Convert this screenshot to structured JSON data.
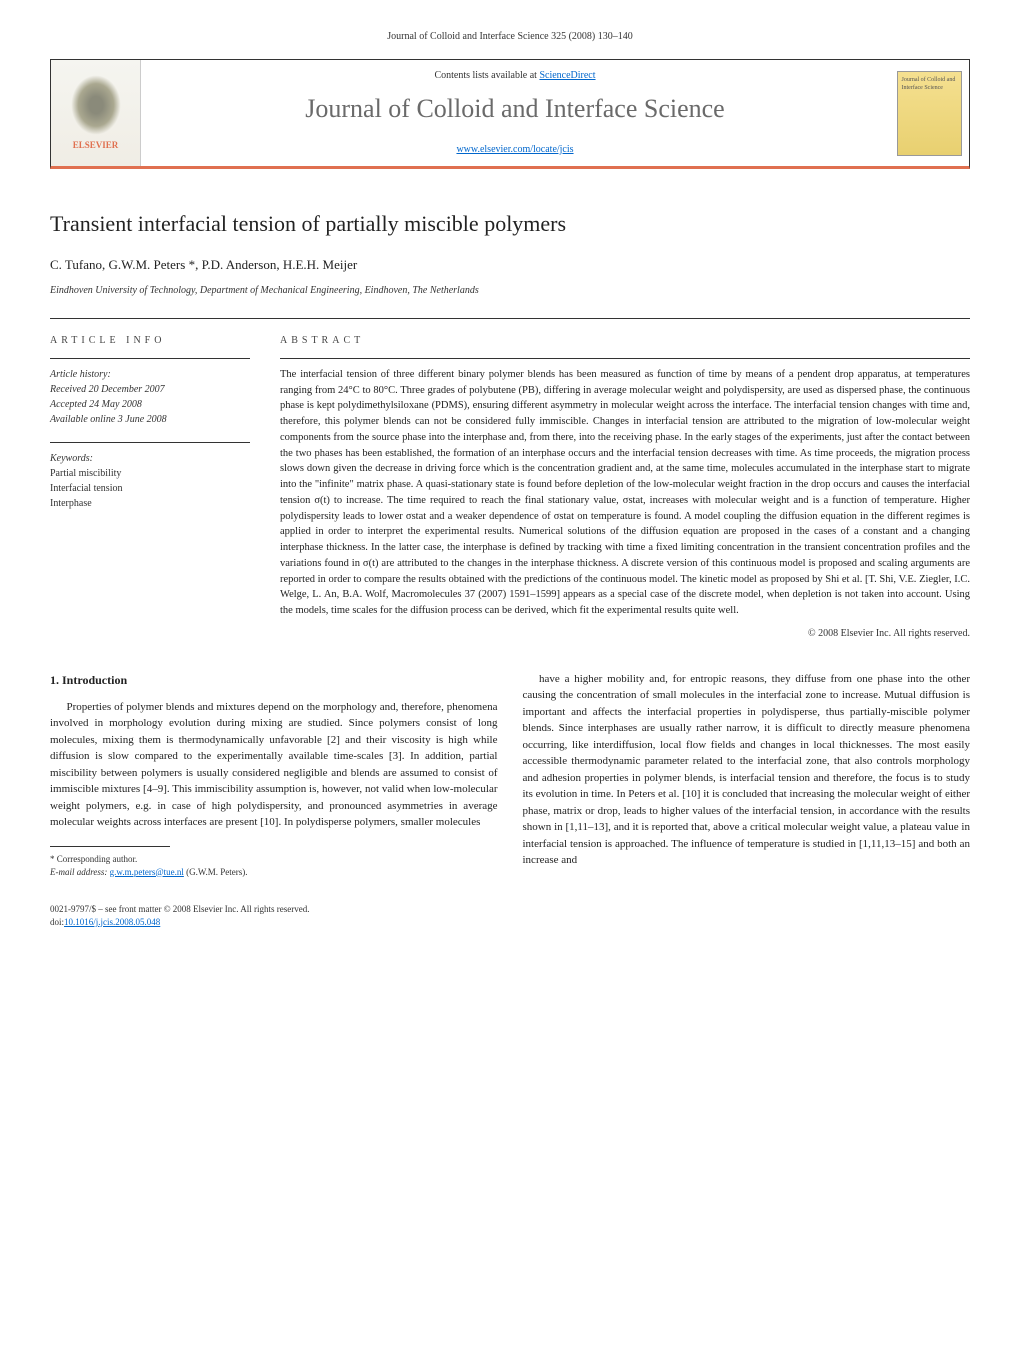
{
  "header": {
    "citation": "Journal of Colloid and Interface Science 325 (2008) 130–140"
  },
  "journalbox": {
    "elsevier_label": "ELSEVIER",
    "contents_prefix": "Contents lists available at ",
    "contents_link": "ScienceDirect",
    "journal_name": "Journal of Colloid and Interface Science",
    "locate_url": "www.elsevier.com/locate/jcis",
    "cover_text": "Journal of Colloid and Interface Science"
  },
  "article": {
    "title": "Transient interfacial tension of partially miscible polymers",
    "authors": "C. Tufano, G.W.M. Peters *, P.D. Anderson, H.E.H. Meijer",
    "affiliation": "Eindhoven University of Technology, Department of Mechanical Engineering, Eindhoven, The Netherlands",
    "info_label": "article info",
    "abstract_label": "abstract",
    "history": {
      "label": "Article history:",
      "received": "Received 20 December 2007",
      "accepted": "Accepted 24 May 2008",
      "online": "Available online 3 June 2008"
    },
    "keywords": {
      "label": "Keywords:",
      "items": [
        "Partial miscibility",
        "Interfacial tension",
        "Interphase"
      ]
    },
    "abstract": "The interfacial tension of three different binary polymer blends has been measured as function of time by means of a pendent drop apparatus, at temperatures ranging from 24°C to 80°C. Three grades of polybutene (PB), differing in average molecular weight and polydispersity, are used as dispersed phase, the continuous phase is kept polydimethylsiloxane (PDMS), ensuring different asymmetry in molecular weight across the interface. The interfacial tension changes with time and, therefore, this polymer blends can not be considered fully immiscible. Changes in interfacial tension are attributed to the migration of low-molecular weight components from the source phase into the interphase and, from there, into the receiving phase. In the early stages of the experiments, just after the contact between the two phases has been established, the formation of an interphase occurs and the interfacial tension decreases with time. As time proceeds, the migration process slows down given the decrease in driving force which is the concentration gradient and, at the same time, molecules accumulated in the interphase start to migrate into the \"infinite\" matrix phase. A quasi-stationary state is found before depletion of the low-molecular weight fraction in the drop occurs and causes the interfacial tension σ(t) to increase. The time required to reach the final stationary value, σstat, increases with molecular weight and is a function of temperature. Higher polydispersity leads to lower σstat and a weaker dependence of σstat on temperature is found. A model coupling the diffusion equation in the different regimes is applied in order to interpret the experimental results. Numerical solutions of the diffusion equation are proposed in the cases of a constant and a changing interphase thickness. In the latter case, the interphase is defined by tracking with time a fixed limiting concentration in the transient concentration profiles and the variations found in σ(t) are attributed to the changes in the interphase thickness. A discrete version of this continuous model is proposed and scaling arguments are reported in order to compare the results obtained with the predictions of the continuous model. The kinetic model as proposed by Shi et al. [T. Shi, V.E. Ziegler, I.C. Welge, L. An, B.A. Wolf, Macromolecules 37 (2007) 1591–1599] appears as a special case of the discrete model, when depletion is not taken into account. Using the models, time scales for the diffusion process can be derived, which fit the experimental results quite well.",
    "copyright": "© 2008 Elsevier Inc. All rights reserved."
  },
  "body": {
    "section1_heading": "1. Introduction",
    "para1": "Properties of polymer blends and mixtures depend on the morphology and, therefore, phenomena involved in morphology evolution during mixing are studied. Since polymers consist of long molecules, mixing them is thermodynamically unfavorable [2] and their viscosity is high while diffusion is slow compared to the experimentally available time-scales [3]. In addition, partial miscibility between polymers is usually considered negligible and blends are assumed to consist of immiscible mixtures [4–9]. This immiscibility assumption is, however, not valid when low-molecular weight polymers, e.g. in case of high polydispersity, and pronounced asymmetries in average molecular weights across interfaces are present [10]. In polydisperse polymers, smaller molecules",
    "para2": "have a higher mobility and, for entropic reasons, they diffuse from one phase into the other causing the concentration of small molecules in the interfacial zone to increase. Mutual diffusion is important and affects the interfacial properties in polydisperse, thus partially-miscible polymer blends. Since interphases are usually rather narrow, it is difficult to directly measure phenomena occurring, like interdiffusion, local flow fields and changes in local thicknesses. The most easily accessible thermodynamic parameter related to the interfacial zone, that also controls morphology and adhesion properties in polymer blends, is interfacial tension and therefore, the focus is to study its evolution in time. In Peters et al. [10] it is concluded that increasing the molecular weight of either phase, matrix or drop, leads to higher values of the interfacial tension, in accordance with the results shown in [1,11–13], and it is reported that, above a critical molecular weight value, a plateau value in interfacial tension is approached. The influence of temperature is studied in [1,11,13–15] and both an increase and"
  },
  "footnote": {
    "corresponding": "* Corresponding author.",
    "email_label": "E-mail address: ",
    "email": "g.w.m.peters@tue.nl",
    "email_name": " (G.W.M. Peters)."
  },
  "footer": {
    "issn_line": "0021-9797/$ – see front matter © 2008 Elsevier Inc. All rights reserved.",
    "doi_label": "doi:",
    "doi": "10.1016/j.jcis.2008.05.048"
  },
  "colors": {
    "accent_orange": "#e07050",
    "link_blue": "#0066cc",
    "title_grey": "#6a6a6a"
  }
}
